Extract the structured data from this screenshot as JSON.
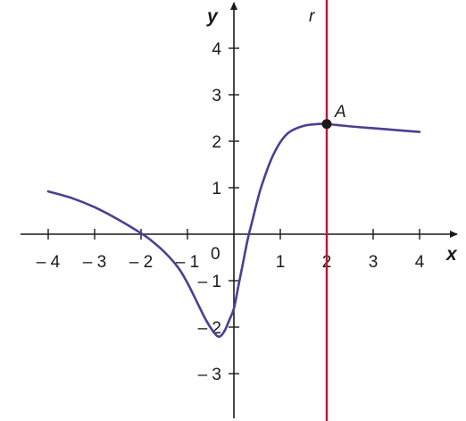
{
  "chart_data": {
    "type": "line",
    "xlabel": "x",
    "ylabel": "y",
    "xlim": [
      -4.5,
      4.5
    ],
    "ylim": [
      -4,
      4.9
    ],
    "x_ticks": [
      -4,
      -3,
      -2,
      -1,
      1,
      2,
      3,
      4
    ],
    "y_ticks": [
      -3,
      -2,
      -1,
      1,
      2,
      3,
      4
    ],
    "x_tick_labels": [
      "– 4",
      "– 3",
      "– 2",
      "– 1",
      "1",
      "2",
      "3",
      "4"
    ],
    "y_tick_labels": [
      "– 3",
      "– 2",
      "– 1",
      "1",
      "2",
      "3",
      "4"
    ],
    "origin_label": "0",
    "grid": false,
    "series": [
      {
        "color": "#4b3f91",
        "x": [
          -4,
          -3.5,
          -3,
          -2.5,
          -2,
          -1.8,
          -1.5,
          -1.2,
          -1,
          -0.8,
          -0.6,
          -0.4,
          -0.3,
          -0.2,
          -0.1,
          0,
          0.1,
          0.2,
          0.3,
          0.4,
          0.5,
          0.6,
          0.8,
          1,
          1.2,
          1.5,
          1.8,
          2,
          2.5,
          3,
          3.5,
          4
        ],
        "y": [
          0.92,
          0.78,
          0.58,
          0.32,
          0.02,
          -0.12,
          -0.38,
          -0.72,
          -1.05,
          -1.45,
          -1.85,
          -2.15,
          -2.2,
          -2.08,
          -1.85,
          -1.6,
          -1.1,
          -0.6,
          -0.1,
          0.3,
          0.7,
          1.05,
          1.6,
          1.98,
          2.2,
          2.33,
          2.37,
          2.37,
          2.32,
          2.28,
          2.24,
          2.2
        ]
      }
    ],
    "vertical_line": {
      "x": 2,
      "label": "r",
      "color": "#c8102e"
    },
    "points": [
      {
        "x": 2,
        "y": 2.37,
        "label": "A"
      }
    ]
  }
}
